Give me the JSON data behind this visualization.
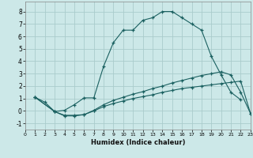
{
  "xlabel": "Humidex (Indice chaleur)",
  "bg_color": "#cce8e8",
  "grid_color": "#aacccc",
  "line_color": "#1a6060",
  "series1_x": [
    1,
    2,
    3,
    4,
    5,
    6,
    7,
    8,
    9,
    10,
    11,
    12,
    13,
    14,
    15,
    16,
    17,
    18,
    19,
    20,
    21,
    22
  ],
  "series1_y": [
    1.1,
    0.7,
    -0.05,
    0.05,
    0.5,
    1.05,
    1.05,
    3.6,
    5.5,
    6.5,
    6.5,
    7.3,
    7.5,
    8.0,
    8.0,
    7.5,
    7.0,
    6.5,
    4.4,
    2.9,
    1.5,
    0.9
  ],
  "series2_x": [
    1,
    3,
    4,
    5,
    6,
    7,
    8,
    9,
    10,
    11,
    12,
    13,
    14,
    15,
    16,
    17,
    18,
    19,
    20,
    21,
    22,
    23
  ],
  "series2_y": [
    1.1,
    -0.05,
    -0.4,
    -0.4,
    -0.3,
    0.05,
    0.5,
    0.85,
    1.1,
    1.35,
    1.55,
    1.8,
    2.0,
    2.25,
    2.45,
    2.65,
    2.85,
    3.0,
    3.15,
    2.9,
    1.5,
    -0.2
  ],
  "series3_x": [
    1,
    3,
    4,
    5,
    6,
    7,
    8,
    9,
    10,
    11,
    12,
    13,
    14,
    15,
    16,
    17,
    18,
    19,
    20,
    21,
    22,
    23
  ],
  "series3_y": [
    1.1,
    -0.05,
    -0.35,
    -0.35,
    -0.3,
    0.0,
    0.35,
    0.6,
    0.8,
    1.0,
    1.15,
    1.3,
    1.5,
    1.65,
    1.8,
    1.9,
    2.0,
    2.1,
    2.2,
    2.3,
    2.4,
    -0.2
  ],
  "xlim": [
    0,
    23
  ],
  "ylim": [
    -1.5,
    8.8
  ],
  "xticks": [
    0,
    1,
    2,
    3,
    4,
    5,
    6,
    7,
    8,
    9,
    10,
    11,
    12,
    13,
    14,
    15,
    16,
    17,
    18,
    19,
    20,
    21,
    22,
    23
  ],
  "yticks": [
    -1,
    0,
    1,
    2,
    3,
    4,
    5,
    6,
    7,
    8
  ]
}
